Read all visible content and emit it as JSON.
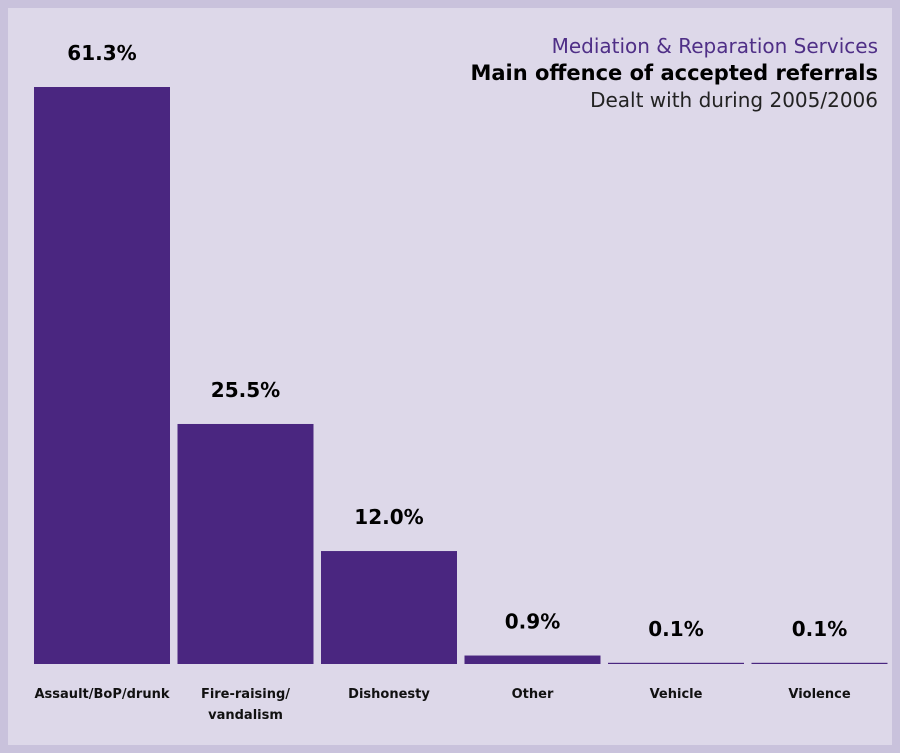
{
  "chart_data": {
    "type": "bar",
    "title": "Main offence of accepted referrals",
    "supertitle": "Mediation & Reparation Services",
    "subtitle": "Dealt with during 2005/2006",
    "categories": [
      [
        "Assault/BoP/drunk"
      ],
      [
        "Fire-raising/",
        "vandalism"
      ],
      [
        "Dishonesty"
      ],
      [
        "Other"
      ],
      [
        "Vehicle"
      ],
      [
        "Violence"
      ]
    ],
    "values": [
      61.3,
      25.5,
      12.0,
      0.9,
      0.1,
      0.1
    ],
    "value_labels": [
      "61.3%",
      "25.5%",
      "12.0%",
      "0.9%",
      "0.1%",
      "0.1%"
    ],
    "unit": "%",
    "ylim": [
      0,
      61.3
    ],
    "grid": false,
    "legend": "none",
    "bar_color": "#4a2680",
    "background_color": "#ddd8e9",
    "border_color": "#c9c2dc"
  }
}
